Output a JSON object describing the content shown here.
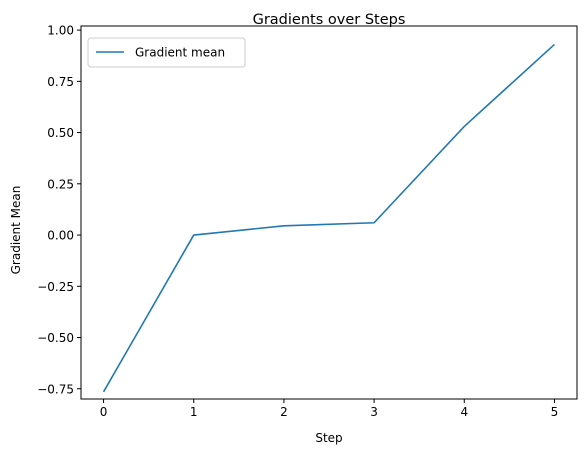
{
  "chart_data": {
    "type": "line",
    "title": "Gradients over Steps",
    "xlabel": "Step",
    "ylabel": "Gradient Mean",
    "x": [
      0,
      1,
      2,
      3,
      4,
      5
    ],
    "xticks": [
      "0",
      "1",
      "2",
      "3",
      "4",
      "5"
    ],
    "yticks": [
      "−0.75",
      "−0.50",
      "−0.25",
      "0.00",
      "0.25",
      "0.50",
      "0.75",
      "1.00"
    ],
    "ytick_values": [
      -0.75,
      -0.5,
      -0.25,
      0.0,
      0.25,
      0.5,
      0.75,
      1.0
    ],
    "xlim": [
      -0.25,
      5.25
    ],
    "ylim": [
      -0.8,
      1.02
    ],
    "grid": false,
    "legend_position": "upper-left",
    "series": [
      {
        "name": "Gradient mean",
        "color": "#1f77b4",
        "values": [
          -0.765,
          0.0,
          0.045,
          0.06,
          0.53,
          0.93
        ]
      }
    ]
  }
}
